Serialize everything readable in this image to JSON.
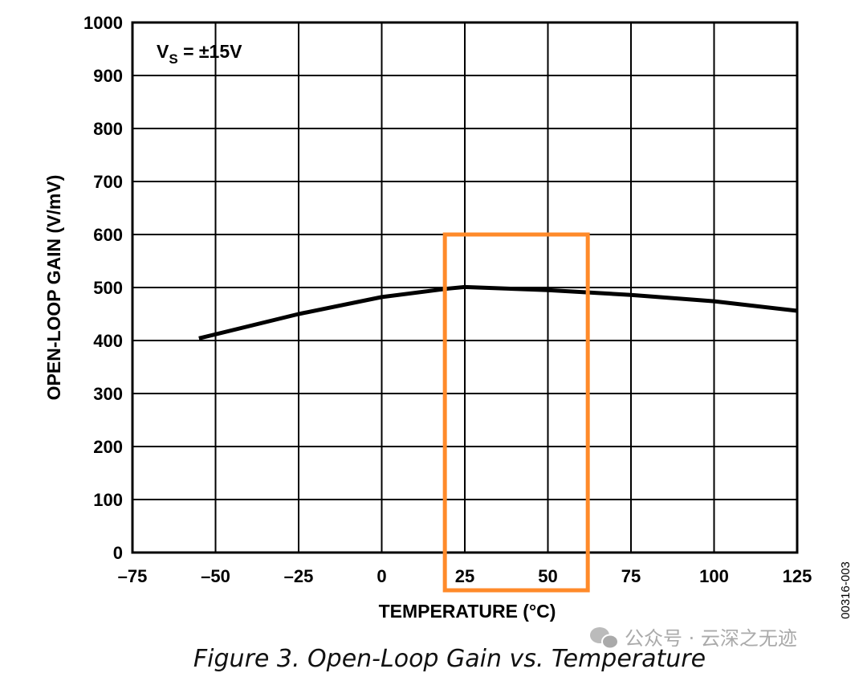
{
  "chart_data": {
    "type": "line",
    "title": "",
    "xlabel": "TEMPERATURE (°C)",
    "ylabel": "OPEN-LOOP GAIN (V/mV)",
    "xlim": [
      -75,
      125
    ],
    "ylim": [
      0,
      1000
    ],
    "xticks": [
      -75,
      -50,
      -25,
      0,
      25,
      50,
      75,
      100,
      125
    ],
    "xtick_labels": [
      "–75",
      "–50",
      "–25",
      "0",
      "25",
      "50",
      "75",
      "100",
      "125"
    ],
    "yticks": [
      0,
      100,
      200,
      300,
      400,
      500,
      600,
      700,
      800,
      900,
      1000
    ],
    "ytick_labels": [
      "0",
      "100",
      "200",
      "300",
      "400",
      "500",
      "600",
      "700",
      "800",
      "900",
      "1000"
    ],
    "grid": true,
    "annotation": {
      "main": "V",
      "subscript": "S",
      "rest": " = ±15V"
    },
    "series": [
      {
        "name": "Open-loop gain",
        "color": "#000000",
        "x": [
          -55,
          -25,
          0,
          20,
          25,
          50,
          75,
          100,
          125
        ],
        "y": [
          404,
          450,
          482,
          498,
          501,
          495,
          486,
          474,
          456
        ]
      }
    ],
    "highlight_box": {
      "color": "#ff8a2a",
      "x_range": [
        19,
        62
      ],
      "y_top": 600
    }
  },
  "figure_id": "00316-003",
  "caption": "Figure 3. Open-Loop Gain vs. Temperature",
  "watermark": "公众号 · 云深之无迹"
}
